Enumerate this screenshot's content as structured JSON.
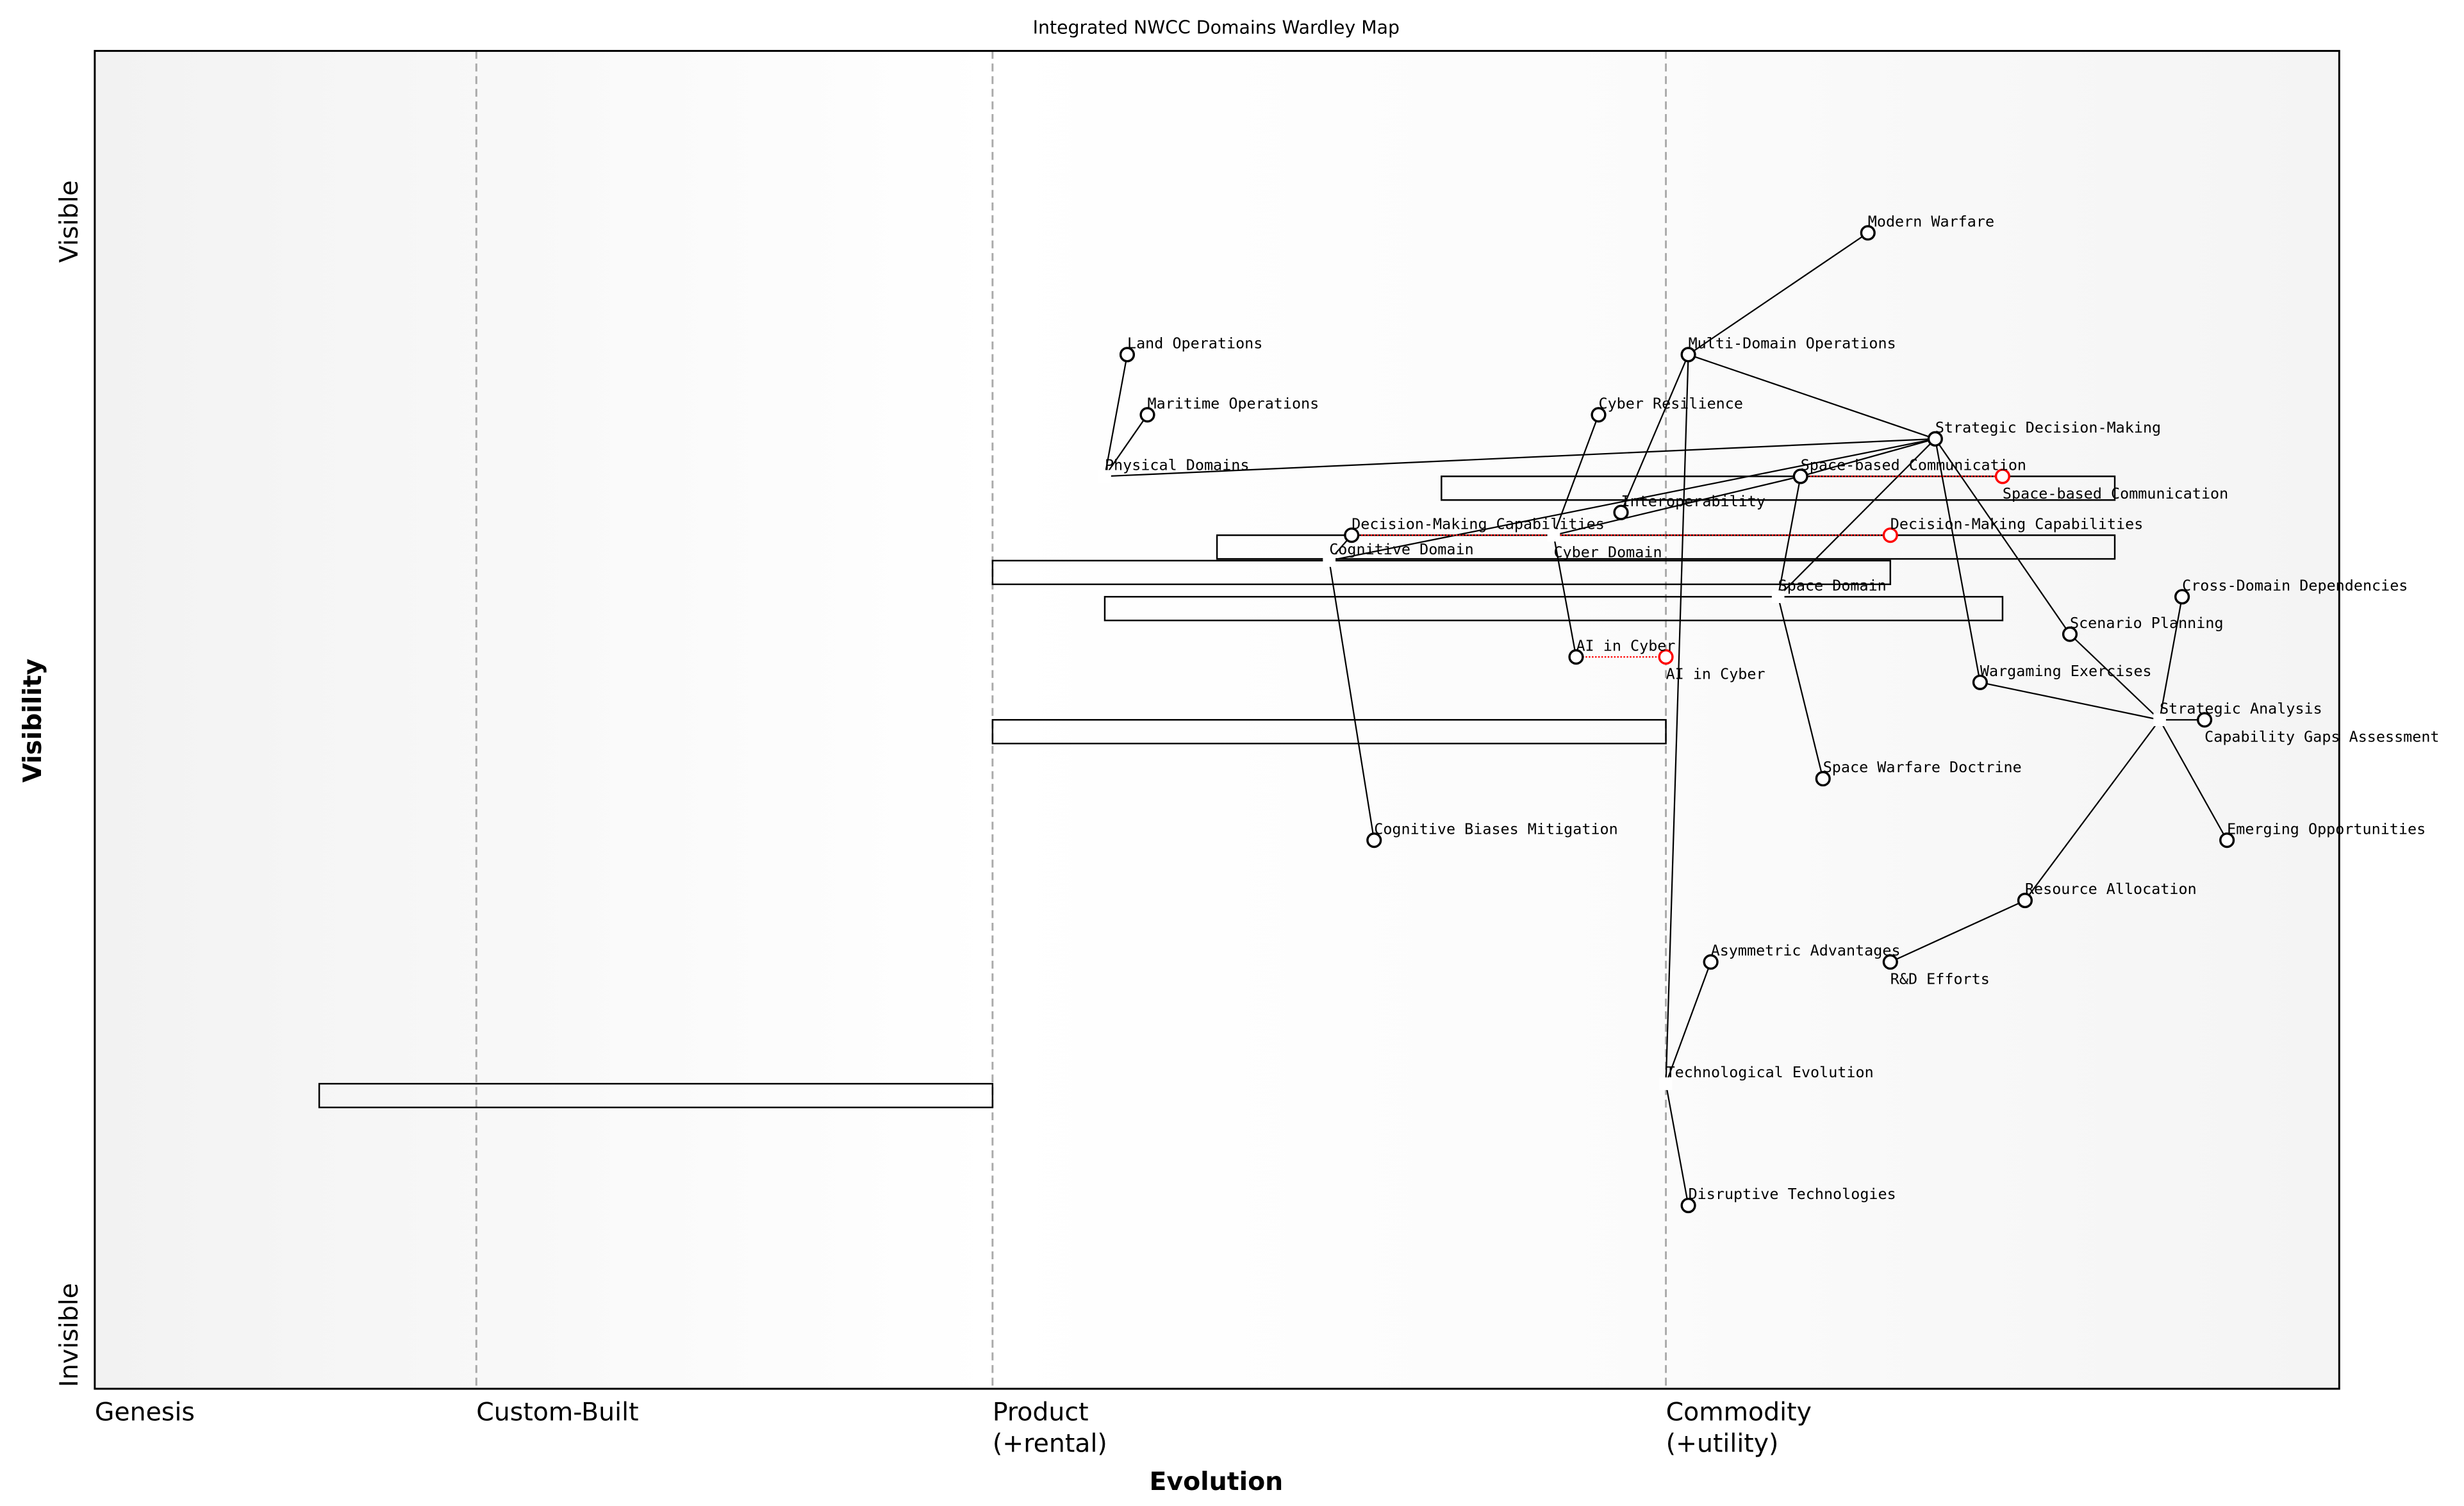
{
  "title": "Integrated NWCC Domains Wardley Map",
  "axes": {
    "xlabel": "Evolution",
    "ylabel": "Visibility",
    "y_top": "Visible",
    "y_bottom": "Invisible",
    "stages": [
      {
        "label": [
          "Genesis"
        ],
        "at": 0.0
      },
      {
        "label": [
          "Custom-Built"
        ],
        "at": 0.17
      },
      {
        "label": [
          "Product",
          "(+rental)"
        ],
        "at": 0.4
      },
      {
        "label": [
          "Commodity",
          "(+utility)"
        ],
        "at": 0.7
      }
    ],
    "xlim": [
      0,
      1
    ],
    "ylim": [
      0,
      1
    ]
  },
  "colors": {
    "node": "#000000",
    "evolve": "#ff0000",
    "divider": "#aaaaaa"
  },
  "components": [
    {
      "name": "Modern Warfare",
      "evolution": 0.79,
      "visibility": 0.864
    },
    {
      "name": "Multi-Domain Operations",
      "evolution": 0.71,
      "visibility": 0.773
    },
    {
      "name": "Land Operations",
      "evolution": 0.46,
      "visibility": 0.773
    },
    {
      "name": "Maritime Operations",
      "evolution": 0.469,
      "visibility": 0.728
    },
    {
      "name": "Cyber Resilience",
      "evolution": 0.67,
      "visibility": 0.728
    },
    {
      "name": "Strategic Decision-Making",
      "evolution": 0.82,
      "visibility": 0.71
    },
    {
      "name": "Physical Domains",
      "evolution": 0.45,
      "visibility": 0.682,
      "hidden_marker": true
    },
    {
      "name": "Space-based Communication",
      "evolution": 0.76,
      "visibility": 0.682
    },
    {
      "name": "Interoperability",
      "evolution": 0.68,
      "visibility": 0.655
    },
    {
      "name": "Decision-Making Capabilities",
      "evolution": 0.56,
      "visibility": 0.638
    },
    {
      "name": "Cyber Domain",
      "evolution": 0.65,
      "visibility": 0.638,
      "hidden_marker": true
    },
    {
      "name": "Cognitive Domain",
      "evolution": 0.55,
      "visibility": 0.619,
      "hidden_marker": true
    },
    {
      "name": "Space Domain",
      "evolution": 0.75,
      "visibility": 0.592,
      "hidden_marker": true
    },
    {
      "name": "Cross-Domain Dependencies",
      "evolution": 0.93,
      "visibility": 0.592
    },
    {
      "name": "Scenario Planning",
      "evolution": 0.88,
      "visibility": 0.564
    },
    {
      "name": "AI in Cyber",
      "evolution": 0.66,
      "visibility": 0.547
    },
    {
      "name": "Wargaming Exercises",
      "evolution": 0.84,
      "visibility": 0.528
    },
    {
      "name": "Strategic Analysis",
      "evolution": 0.92,
      "visibility": 0.5,
      "hidden_marker": true
    },
    {
      "name": "Capability Gaps Assessment",
      "evolution": 0.94,
      "visibility": 0.5
    },
    {
      "name": "Space Warfare Doctrine",
      "evolution": 0.77,
      "visibility": 0.456
    },
    {
      "name": "Cognitive Biases Mitigation",
      "evolution": 0.57,
      "visibility": 0.41
    },
    {
      "name": "Emerging Opportunities",
      "evolution": 0.95,
      "visibility": 0.41
    },
    {
      "name": "Resource Allocation",
      "evolution": 0.86,
      "visibility": 0.365
    },
    {
      "name": "Asymmetric Advantages",
      "evolution": 0.72,
      "visibility": 0.319
    },
    {
      "name": "R&D Efforts",
      "evolution": 0.8,
      "visibility": 0.319
    },
    {
      "name": "Technological Evolution",
      "evolution": 0.7,
      "visibility": 0.228,
      "hidden_marker": true
    },
    {
      "name": "Disruptive Technologies",
      "evolution": 0.71,
      "visibility": 0.137
    }
  ],
  "links": [
    [
      "Multi-Domain Operations",
      "Modern Warfare"
    ],
    [
      "Multi-Domain Operations",
      "Strategic Decision-Making"
    ],
    [
      "Multi-Domain Operations",
      "Interoperability"
    ],
    [
      "Multi-Domain Operations",
      "Technological Evolution"
    ],
    [
      "Physical Domains",
      "Land Operations"
    ],
    [
      "Physical Domains",
      "Maritime Operations"
    ],
    [
      "Physical Domains",
      "Strategic Decision-Making"
    ],
    [
      "Cognitive Domain",
      "Decision-Making Capabilities"
    ],
    [
      "Cognitive Domain",
      "Strategic Decision-Making"
    ],
    [
      "Cognitive Domain",
      "Cognitive Biases Mitigation"
    ],
    [
      "Cyber Domain",
      "Cyber Resilience"
    ],
    [
      "Cyber Domain",
      "AI in Cyber"
    ],
    [
      "Cyber Domain",
      "Space-based Communication"
    ],
    [
      "Space-based Communication",
      "Strategic Decision-Making"
    ],
    [
      "Space Domain",
      "Strategic Decision-Making"
    ],
    [
      "Space Domain",
      "Space-based Communication"
    ],
    [
      "Space Domain",
      "Space Warfare Doctrine"
    ],
    [
      "Strategic Decision-Making",
      "Wargaming Exercises"
    ],
    [
      "Strategic Decision-Making",
      "Scenario Planning"
    ],
    [
      "Strategic Analysis",
      "Scenario Planning"
    ],
    [
      "Strategic Analysis",
      "Wargaming Exercises"
    ],
    [
      "Strategic Analysis",
      "Cross-Domain Dependencies"
    ],
    [
      "Strategic Analysis",
      "Capability Gaps Assessment"
    ],
    [
      "Strategic Analysis",
      "Emerging Opportunities"
    ],
    [
      "Strategic Analysis",
      "Resource Allocation"
    ],
    [
      "Resource Allocation",
      "R&D Efforts"
    ],
    [
      "Technological Evolution",
      "Asymmetric Advantages"
    ],
    [
      "Technological Evolution",
      "Disruptive Technologies"
    ]
  ],
  "evolutions": [
    {
      "name": "Space-based Communication",
      "from": 0.76,
      "to": 0.85,
      "visibility": 0.682
    },
    {
      "name": "Decision-Making Capabilities",
      "from": 0.56,
      "to": 0.8,
      "visibility": 0.638
    },
    {
      "name": "AI in Cyber",
      "from": 0.66,
      "to": 0.7,
      "visibility": 0.547
    }
  ],
  "pipelines": [
    {
      "start": 0.6,
      "end": 0.9,
      "visibility": 0.682
    },
    {
      "start": 0.5,
      "end": 0.9,
      "visibility": 0.638
    },
    {
      "start": 0.4,
      "end": 0.8,
      "visibility": 0.619
    },
    {
      "start": 0.45,
      "end": 0.85,
      "visibility": 0.592
    },
    {
      "start": 0.4,
      "end": 0.7,
      "visibility": 0.5
    },
    {
      "start": 0.1,
      "end": 0.4,
      "visibility": 0.228
    }
  ]
}
